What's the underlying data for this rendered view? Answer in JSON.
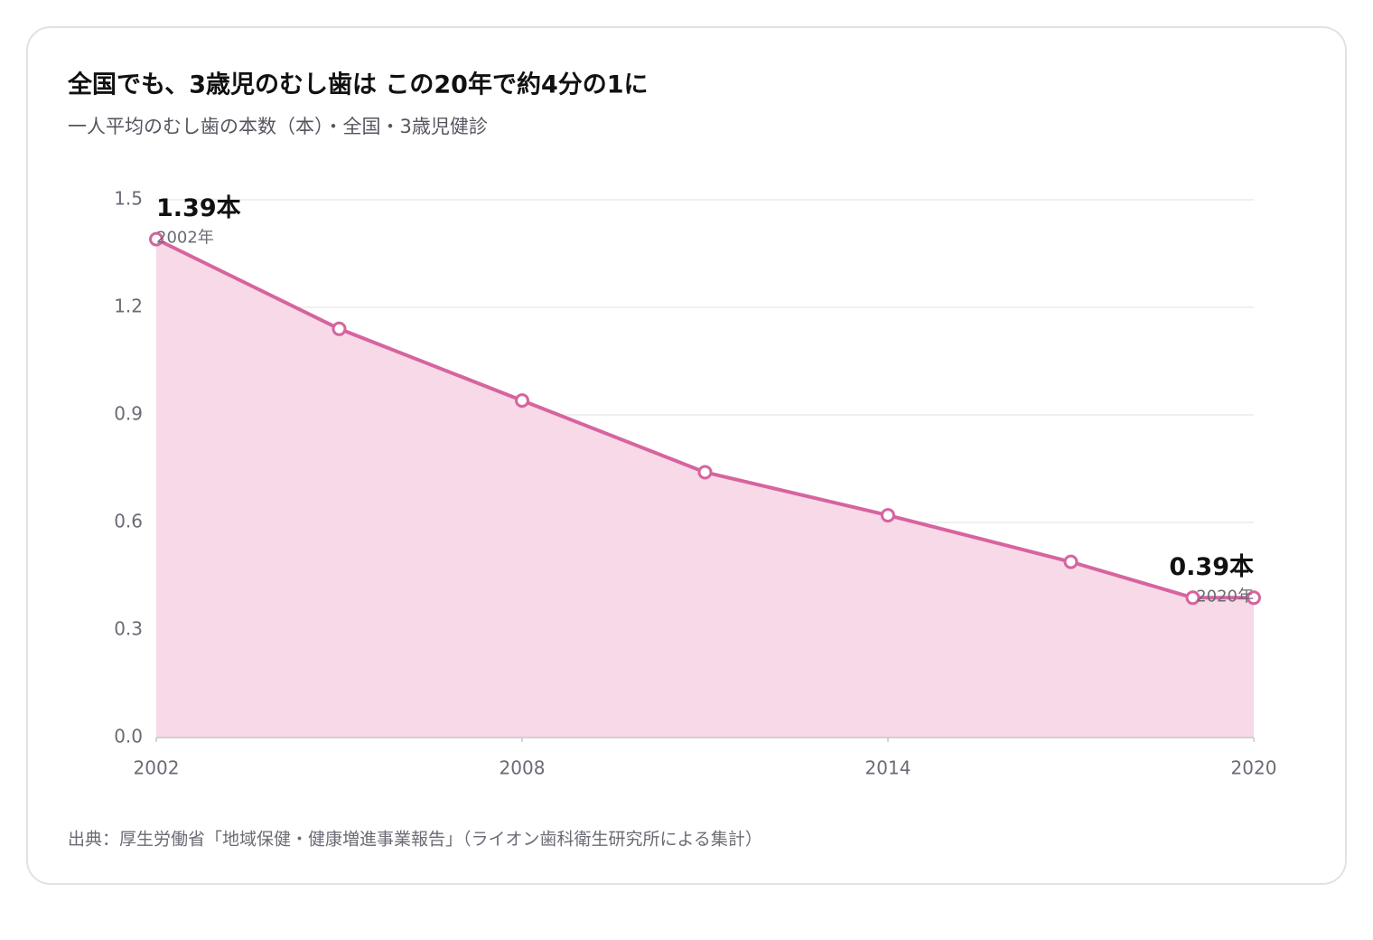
{
  "chart_data": {
    "type": "area",
    "title": "全国でも、3歳児のむし歯は この20年で約4分の1に",
    "subtitle": "一人平均のむし歯の本数（本）・全国・3歳児健診",
    "source": "出典：厚生労働省「地域保健・健康増進事業報告」（ライオン歯科衛生研究所による集計）",
    "x": [
      2002,
      2005,
      2008,
      2011,
      2014,
      2017,
      2019,
      2020
    ],
    "values": [
      1.39,
      1.14,
      0.94,
      0.74,
      0.62,
      0.49,
      0.39,
      0.39
    ],
    "value_labels": [
      "1.39本",
      null,
      null,
      null,
      null,
      null,
      null,
      "0.39本"
    ],
    "point_captions": [
      "2002年",
      null,
      null,
      null,
      null,
      null,
      null,
      "2020年"
    ],
    "color": "#d6649f",
    "fill_color": "#f7d9e8",
    "xlim": [
      2002,
      2020
    ],
    "xticks": [
      2002,
      2008,
      2014,
      2020
    ],
    "ylim": [
      0,
      1.5
    ],
    "yticks": [
      {
        "value": 0,
        "label": "0.0"
      },
      0.3,
      0.6,
      0.9,
      1.2,
      1.5
    ],
    "grid": true
  }
}
